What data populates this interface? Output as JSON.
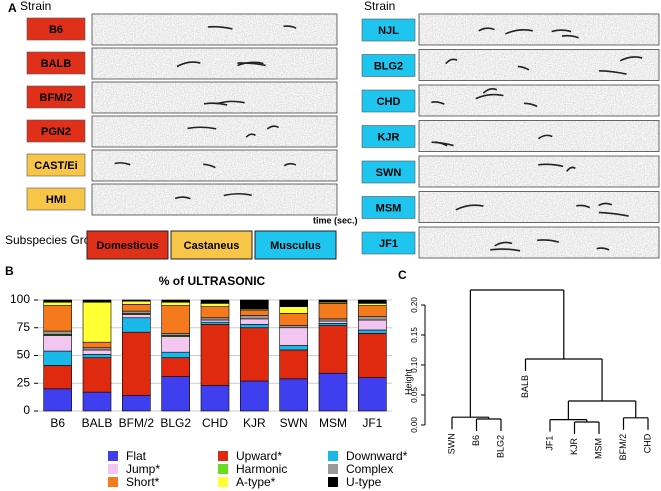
{
  "panel_a": {
    "label": "A",
    "strain_header_left": "Strain",
    "strain_header_right": "Strain",
    "left_strains": [
      {
        "name": "B6",
        "color": "#e0301a",
        "text_color": "#ffffff"
      },
      {
        "name": "BALB",
        "color": "#e0301a",
        "text_color": "#ffffff"
      },
      {
        "name": "BFM/2",
        "color": "#e0301a",
        "text_color": "#ffffff"
      },
      {
        "name": "PGN2",
        "color": "#e0301a",
        "text_color": "#ffffff"
      },
      {
        "name": "CAST/Ei",
        "color": "#f7c548",
        "text_color": "#000000"
      },
      {
        "name": "HMI",
        "color": "#f7c548",
        "text_color": "#000000"
      }
    ],
    "right_strains": [
      {
        "name": "NJL",
        "color": "#1ec6ef",
        "text_color": "#ffffff"
      },
      {
        "name": "BLG2",
        "color": "#1ec6ef",
        "text_color": "#ffffff"
      },
      {
        "name": "CHD",
        "color": "#1ec6ef",
        "text_color": "#ffffff"
      },
      {
        "name": "KJR",
        "color": "#1ec6ef",
        "text_color": "#ffffff"
      },
      {
        "name": "SWN",
        "color": "#1ec6ef",
        "text_color": "#ffffff"
      },
      {
        "name": "MSM",
        "color": "#1ec6ef",
        "text_color": "#ffffff"
      },
      {
        "name": "JF1",
        "color": "#1ec6ef",
        "text_color": "#ffffff"
      }
    ],
    "time_axis_label": "time (sec.)",
    "subspecies_label": "Subspecies Group",
    "subspecies_groups": [
      {
        "name": "Domesticus",
        "color": "#e0301a",
        "text_color": "#ffffff"
      },
      {
        "name": "Castaneus",
        "color": "#f7c548",
        "text_color": "#000000"
      },
      {
        "name": "Musculus",
        "color": "#1ec6ef",
        "text_color": "#ffffff"
      }
    ]
  },
  "chart_data": [
    {
      "panel_label": "B",
      "type": "bar",
      "stacked": true,
      "title": "% of ULTRASONIC",
      "categories": [
        "B6",
        "BALB",
        "BFM/2",
        "BLG2",
        "CHD",
        "KJR",
        "SWN",
        "MSM",
        "JF1"
      ],
      "series": [
        {
          "name": "Flat",
          "color": "#3f3ff0",
          "values": [
            20,
            17,
            14,
            31,
            23,
            27,
            29,
            34,
            30
          ]
        },
        {
          "name": "Upward*",
          "color": "#e02a10",
          "values": [
            21,
            31,
            57,
            17,
            55,
            48,
            26,
            43,
            40
          ]
        },
        {
          "name": "Downward*",
          "color": "#19b8e8",
          "values": [
            13,
            3,
            13,
            5,
            2,
            3,
            4,
            2,
            3
          ]
        },
        {
          "name": "Jump*",
          "color": "#f2c6f0",
          "values": [
            14,
            4,
            3,
            14,
            2,
            5,
            16,
            2,
            9
          ]
        },
        {
          "name": "Harmonic",
          "color": "#66dd22",
          "values": [
            1,
            0,
            1,
            1,
            0,
            0,
            0,
            0,
            0
          ]
        },
        {
          "name": "Complex",
          "color": "#999999",
          "values": [
            3,
            2,
            2,
            2,
            2,
            3,
            2,
            2,
            3
          ]
        },
        {
          "name": "Short*",
          "color": "#f57a1e",
          "values": [
            23,
            5,
            6,
            25,
            10,
            5,
            11,
            14,
            10
          ]
        },
        {
          "name": "A-type*",
          "color": "#ffff33",
          "values": [
            3,
            36,
            3,
            3,
            3,
            1,
            6,
            1,
            2
          ]
        },
        {
          "name": "U-type",
          "color": "#000000",
          "values": [
            2,
            2,
            1,
            2,
            3,
            8,
            6,
            2,
            3
          ]
        }
      ],
      "ylim": [
        0,
        100
      ],
      "yticks": [
        0,
        25,
        50,
        75,
        100
      ],
      "grid": true
    },
    {
      "panel_label": "C",
      "type": "dendrogram",
      "y_label": "Height",
      "ylim": [
        0,
        0.2
      ],
      "yticks": [
        {
          "value": 0,
          "label": "0.00"
        },
        {
          "value": 0.05,
          "label": "0.05"
        },
        {
          "value": 0.1,
          "label": "0.10"
        },
        {
          "value": 0.15,
          "label": "0.15"
        },
        {
          "value": 0.2,
          "label": "0.20"
        }
      ],
      "tree": {
        "height": 0.225,
        "children": [
          {
            "height": 0.013,
            "children": [
              "SWN",
              {
                "height": 0.01,
                "children": [
                  "B6",
                  "BLG2"
                ]
              }
            ]
          },
          {
            "height": 0.11,
            "children": [
              "BALB",
              {
                "height": 0.04,
                "children": [
                  {
                    "height": 0.009,
                    "children": [
                      "JF1",
                      {
                        "height": 0.005,
                        "children": [
                          "KJR",
                          "MSM"
                        ]
                      }
                    ]
                  },
                  {
                    "height": 0.012,
                    "children": [
                      "BFM/2",
                      "CHD"
                    ]
                  }
                ]
              }
            ]
          }
        ]
      }
    }
  ]
}
